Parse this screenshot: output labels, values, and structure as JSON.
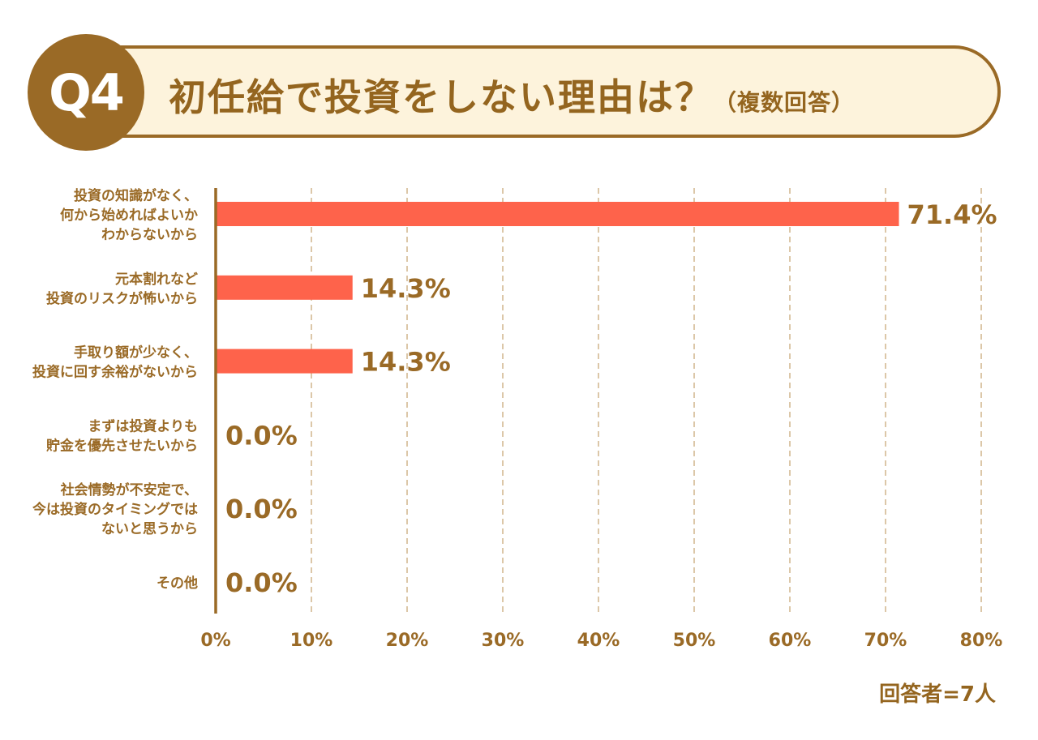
{
  "header": {
    "badge": "Q4",
    "title": "初任給で投資をしない理由は？",
    "subtitle": "（複数回答）"
  },
  "respondents": "回答者=7人",
  "colors": {
    "brand": "#9a6a26",
    "bar": "#fe634b",
    "banner_bg": "#fdf3dc",
    "grid": "#c9a97a"
  },
  "chart_data": {
    "type": "bar",
    "orientation": "horizontal",
    "categories": [
      [
        "投資の知識がなく、",
        "何から始めればよいか",
        "わからないから"
      ],
      [
        "元本割れなど",
        "投資のリスクが怖いから"
      ],
      [
        "手取り額が少なく、",
        "投資に回す余裕がないから"
      ],
      [
        "まずは投資よりも",
        "貯金を優先させたいから"
      ],
      [
        "社会情勢が不安定で、",
        "今は投資のタイミングでは",
        "ないと思うから"
      ],
      [
        "その他"
      ]
    ],
    "values": [
      71.4,
      14.3,
      14.3,
      0.0,
      0.0,
      0.0
    ],
    "data_labels": [
      "71.4%",
      "14.3%",
      "14.3%",
      "0.0%",
      "0.0%",
      "0.0%"
    ],
    "xlim": [
      0,
      80
    ],
    "xticks": [
      0,
      10,
      20,
      30,
      40,
      50,
      60,
      70,
      80
    ],
    "xtick_labels": [
      "0%",
      "10%",
      "20%",
      "30%",
      "40%",
      "50%",
      "60%",
      "70%",
      "80%"
    ],
    "grid": "vertical dashed",
    "legend": "none"
  }
}
